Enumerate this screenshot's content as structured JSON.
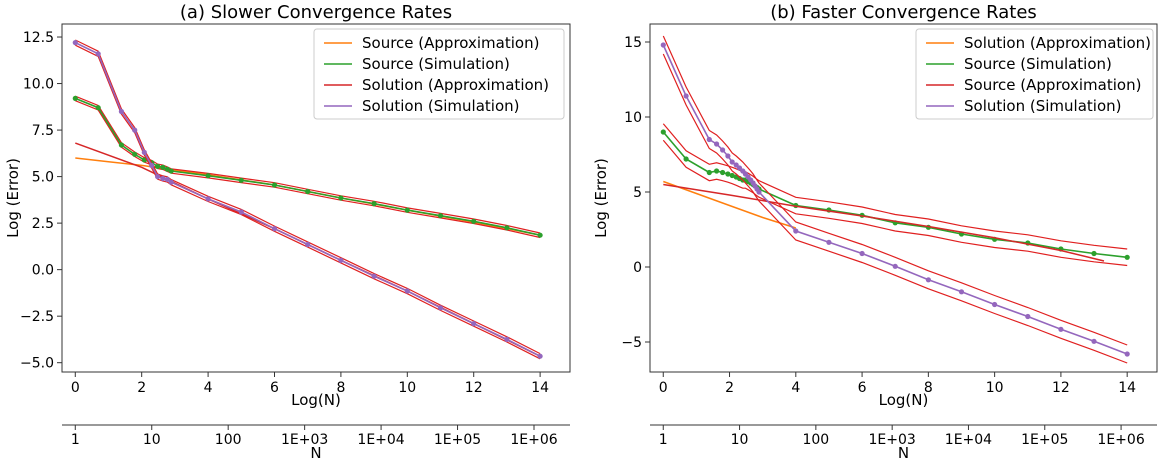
{
  "figure_colors": {
    "orange": "#ff7f0e",
    "green": "#2ca02c",
    "red": "#d62728",
    "purple": "#9467bd",
    "red_band": "#e02020"
  },
  "chart_data": [
    {
      "type": "line",
      "title": "(a) Slower Convergence Rates",
      "xlabel": "Log(N)",
      "ylabel": "Log (Error)",
      "secondary_xlabel": "N",
      "xlim": [
        -0.4,
        14.9
      ],
      "ylim": [
        -5.5,
        13.2
      ],
      "xticks": [
        0,
        2,
        4,
        6,
        8,
        10,
        12,
        14
      ],
      "yticks": [
        -5.0,
        -2.5,
        0.0,
        2.5,
        5.0,
        7.5,
        10.0,
        12.5
      ],
      "ytick_labels": [
        "−5.0",
        "−2.5",
        "0.0",
        "2.5",
        "5.0",
        "7.5",
        "10.0",
        "12.5"
      ],
      "secondary_xticks": [
        {
          "value": 0,
          "label": "1"
        },
        {
          "value": 2.303,
          "label": "10"
        },
        {
          "value": 4.605,
          "label": "100"
        },
        {
          "value": 6.908,
          "label": "1E+03"
        },
        {
          "value": 9.21,
          "label": "1E+04"
        },
        {
          "value": 11.513,
          "label": "1E+05"
        },
        {
          "value": 13.816,
          "label": "1E+06"
        }
      ],
      "legend_position": "upper right",
      "series": [
        {
          "name": "Source (Approximation)",
          "color": "#ff7f0e",
          "style": "line",
          "x": [
            0,
            1,
            2,
            3,
            4,
            6,
            8,
            10,
            12,
            14
          ],
          "y": [
            6.0,
            5.8,
            5.6,
            5.35,
            5.1,
            4.55,
            3.85,
            3.2,
            2.55,
            1.85
          ]
        },
        {
          "name": "Source (Simulation)",
          "color": "#2ca02c",
          "style": "band-markers",
          "x": [
            0,
            0.69,
            1.39,
            1.79,
            2.08,
            2.3,
            2.48,
            2.64,
            2.77,
            2.89,
            4.0,
            5.0,
            6.0,
            7.0,
            8.0,
            9.0,
            10.0,
            11.0,
            12.0,
            13.0,
            14.0
          ],
          "y": [
            9.2,
            8.7,
            6.7,
            6.2,
            5.9,
            5.75,
            5.55,
            5.5,
            5.4,
            5.3,
            5.05,
            4.8,
            4.55,
            4.2,
            3.85,
            3.55,
            3.2,
            2.9,
            2.6,
            2.25,
            1.85
          ],
          "band": 0.12
        },
        {
          "name": "Solution (Approximation)",
          "color": "#d62728",
          "style": "line",
          "x": [
            0,
            2,
            4,
            6,
            8,
            10,
            12,
            14
          ],
          "y": [
            6.8,
            5.5,
            3.8,
            2.2,
            0.5,
            -1.15,
            -2.9,
            -4.65
          ]
        },
        {
          "name": "Solution (Simulation)",
          "color": "#9467bd",
          "style": "band-markers",
          "x": [
            0,
            0.69,
            1.39,
            1.79,
            2.08,
            2.3,
            2.48,
            2.64,
            2.77,
            2.89,
            4.0,
            5.0,
            6.0,
            7.0,
            8.0,
            9.0,
            10.0,
            11.0,
            12.0,
            13.0,
            14.0
          ],
          "y": [
            12.2,
            11.6,
            8.5,
            7.5,
            6.3,
            5.6,
            5.0,
            4.9,
            4.85,
            4.7,
            3.8,
            3.1,
            2.2,
            1.35,
            0.5,
            -0.35,
            -1.15,
            -2.05,
            -2.9,
            -3.75,
            -4.65
          ],
          "band": 0.14
        }
      ]
    },
    {
      "type": "line",
      "title": "(b) Faster Convergence Rates",
      "xlabel": "Log(N)",
      "ylabel": "Log (Error)",
      "secondary_xlabel": "N",
      "xlim": [
        -0.4,
        14.9
      ],
      "ylim": [
        -7.0,
        16.2
      ],
      "xticks": [
        0,
        2,
        4,
        6,
        8,
        10,
        12,
        14
      ],
      "yticks": [
        -5,
        0,
        5,
        10,
        15
      ],
      "ytick_labels": [
        "−5",
        "0",
        "5",
        "10",
        "15"
      ],
      "secondary_xticks": [
        {
          "value": 0,
          "label": "1"
        },
        {
          "value": 2.303,
          "label": "10"
        },
        {
          "value": 4.605,
          "label": "100"
        },
        {
          "value": 6.908,
          "label": "1E+03"
        },
        {
          "value": 9.21,
          "label": "1E+04"
        },
        {
          "value": 11.513,
          "label": "1E+05"
        },
        {
          "value": 13.816,
          "label": "1E+06"
        }
      ],
      "legend_position": "upper right",
      "series": [
        {
          "name": "Solution (Approximation)",
          "color": "#ff7f0e",
          "style": "line",
          "x": [
            0,
            1,
            2,
            3,
            4
          ],
          "y": [
            5.7,
            4.9,
            4.1,
            3.3,
            2.6
          ]
        },
        {
          "name": "Source (Simulation)",
          "color": "#2ca02c",
          "style": "band-markers",
          "x": [
            0,
            0.69,
            1.39,
            1.61,
            1.79,
            1.95,
            2.08,
            2.2,
            2.3,
            2.4,
            2.48,
            2.56,
            2.64,
            2.71,
            2.77,
            2.83,
            2.89,
            4.0,
            5.0,
            6.0,
            7.0,
            8.0,
            9.0,
            10.0,
            11.0,
            12.0,
            13.0,
            14.0
          ],
          "y": [
            9.0,
            7.2,
            6.3,
            6.4,
            6.3,
            6.2,
            6.1,
            6.0,
            5.9,
            5.8,
            5.8,
            5.7,
            5.6,
            5.5,
            5.4,
            5.3,
            5.2,
            4.1,
            3.8,
            3.45,
            2.95,
            2.65,
            2.2,
            1.85,
            1.6,
            1.2,
            0.9,
            0.65
          ],
          "band": 0.55
        },
        {
          "name": "Source (Approximation)",
          "color": "#d62728",
          "style": "line",
          "x": [
            0,
            2,
            4,
            6,
            8,
            10,
            12,
            13.3
          ],
          "y": [
            5.5,
            4.8,
            4.05,
            3.4,
            2.7,
            1.95,
            1.1,
            0.4
          ]
        },
        {
          "name": "Solution (Simulation)",
          "color": "#9467bd",
          "style": "band-markers",
          "x": [
            0,
            0.69,
            1.39,
            1.61,
            1.79,
            1.95,
            2.08,
            2.2,
            2.3,
            2.4,
            2.48,
            2.56,
            2.64,
            2.71,
            2.77,
            2.83,
            2.89,
            4.0,
            5.0,
            6.0,
            7.0,
            8.0,
            9.0,
            10.0,
            11.0,
            12.0,
            13.0,
            14.0
          ],
          "y": [
            14.8,
            11.4,
            8.5,
            8.2,
            7.8,
            7.4,
            7.0,
            6.8,
            6.6,
            6.4,
            6.2,
            6.0,
            5.8,
            5.6,
            5.4,
            5.2,
            5.0,
            2.4,
            1.65,
            0.9,
            0.05,
            -0.85,
            -1.65,
            -2.5,
            -3.3,
            -4.15,
            -4.95,
            -5.8
          ],
          "band": 0.6
        }
      ]
    }
  ]
}
